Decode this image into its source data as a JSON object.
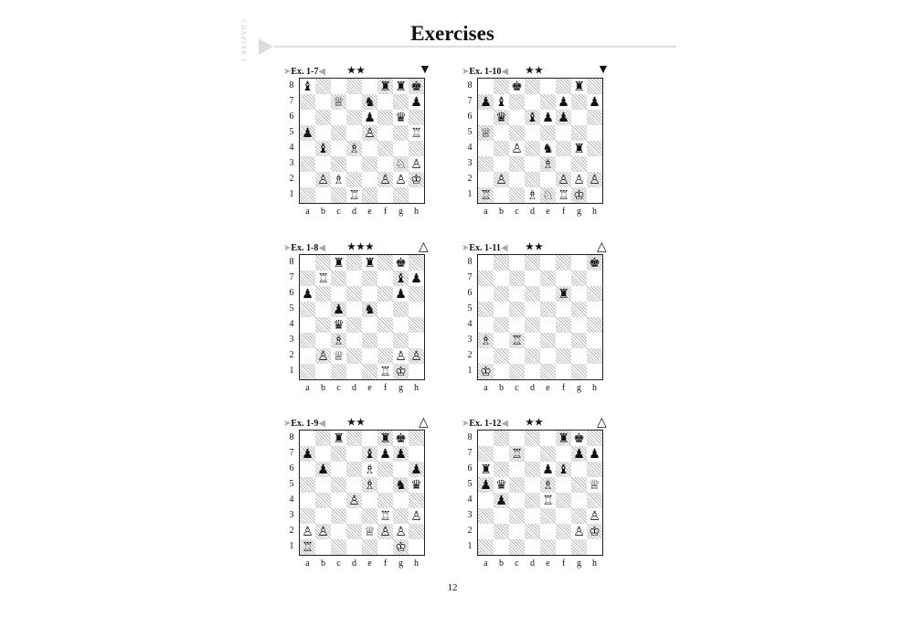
{
  "page": {
    "chapter_label": "CHAPTER 1",
    "title": "Exercises",
    "page_number": "12"
  },
  "files": [
    "a",
    "b",
    "c",
    "d",
    "e",
    "f",
    "g",
    "h"
  ],
  "ranks": [
    "8",
    "7",
    "6",
    "5",
    "4",
    "3",
    "2",
    "1"
  ],
  "icons": {
    "arrow_left": "➤",
    "arrow_right": "◀",
    "white_to_move": "△",
    "black_to_move": "▼"
  },
  "exercises": [
    {
      "id": "Ex. 1-7",
      "stars": "★★",
      "to_move": "black",
      "move_symbol": "▼",
      "position": [
        "b4rrk",
        "2Q1n2p",
        "4p1q1",
        "p3P2R",
        "1b1B4",
        "6NP",
        "1PB2PPK",
        "3R4"
      ]
    },
    {
      "id": "Ex. 1-10",
      "stars": "★★",
      "to_move": "black",
      "move_symbol": "▼",
      "position": [
        "2k3r1",
        "pb3p1p",
        "1q1bpp2",
        "Q7",
        "2P1n1r1",
        "4B3",
        "1P3PPP",
        "R2BNRK1"
      ]
    },
    {
      "id": "Ex. 1-8",
      "stars": "★★★",
      "to_move": "white",
      "move_symbol": "△",
      "position": [
        "2r1r1k1",
        "1R4bp",
        "p5p1",
        "2p1n3",
        "2q5",
        "2B5",
        "1PQ3PP",
        "5RK1"
      ]
    },
    {
      "id": "Ex. 1-11",
      "stars": "★★",
      "to_move": "white",
      "move_symbol": "△",
      "position": [
        "7k",
        "8",
        "5r2",
        "8",
        "8",
        "B1R5",
        "8",
        "K7"
      ]
    },
    {
      "id": "Ex. 1-9",
      "stars": "★★",
      "to_move": "white",
      "move_symbol": "△",
      "position": [
        "2r2rk1",
        "p3bpp1",
        "1p2B2p",
        "4B1nq",
        "3P4",
        "5R1P",
        "PP2QPP1",
        "R5K1"
      ]
    },
    {
      "id": "Ex. 1-12",
      "stars": "★★",
      "to_move": "white",
      "move_symbol": "△",
      "position": [
        "5rk1",
        "2R3pp",
        "r3pb2",
        "pq2B2Q",
        "1p2R3",
        "7P",
        "6PK",
        "8"
      ]
    }
  ]
}
